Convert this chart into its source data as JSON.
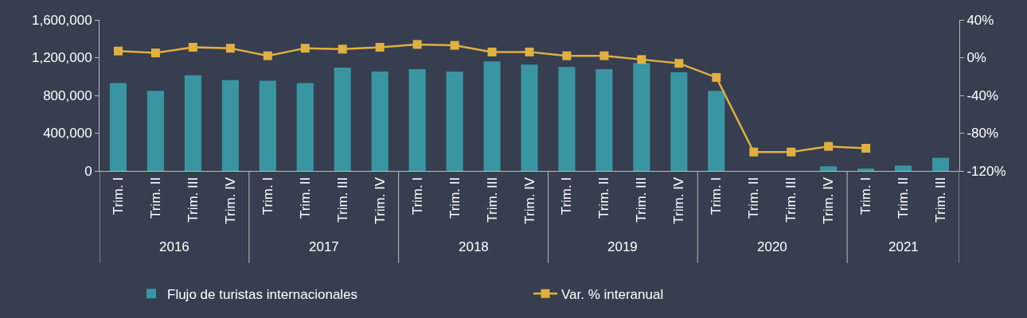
{
  "chart_data": {
    "type": "bar",
    "categories": [
      "Trim. I",
      "Trim. II",
      "Trim. III",
      "Trim. IV",
      "Trim. I",
      "Trim. II",
      "Trim. III",
      "Trim. IV",
      "Trim. I",
      "Trim. II",
      "Trim. III",
      "Trim. IV",
      "Trim. I",
      "Trim. II",
      "Trim. III",
      "Trim. IV",
      "Trim. I",
      "Trim. II",
      "Trim. III",
      "Trim. IV",
      "Trim. I",
      "Trim. II",
      "Trim. III"
    ],
    "annotations": [
      "2016",
      "2017",
      "2018",
      "2019",
      "2020",
      "2021"
    ],
    "series": [
      {
        "name": "Flujo de turistas internacionales",
        "color": "#3a95a3",
        "values": [
          930000,
          849000,
          1012000,
          963000,
          955000,
          930000,
          1094000,
          1053000,
          1078000,
          1053000,
          1159000,
          1127000,
          1102000,
          1078000,
          1143000,
          1045000,
          849000,
          null,
          null,
          49000,
          25000,
          57000,
          139000
        ]
      },
      {
        "name": "Var. % interanual",
        "type": "line",
        "axis": "y2",
        "color": "#e0b040",
        "marker": "square",
        "values": [
          7,
          5,
          11,
          10,
          2,
          10,
          9,
          11,
          14,
          13,
          6,
          6,
          2,
          2,
          -2,
          -6,
          -21,
          -100,
          -100,
          -94,
          -96,
          null,
          null
        ]
      }
    ],
    "ylim": [
      0,
      1600000
    ],
    "yticks": [
      {
        "value": 0,
        "label": "0"
      },
      {
        "value": 400000,
        "label": "400,000"
      },
      {
        "value": 800000,
        "label": "800,000"
      },
      {
        "value": 1200000,
        "label": "1,200,000"
      },
      {
        "value": 1600000,
        "label": "1,600,000"
      }
    ],
    "y2lim": [
      -120,
      40
    ],
    "y2ticks": [
      {
        "value": -120,
        "label": "-120%"
      },
      {
        "value": -80,
        "label": "-80%"
      },
      {
        "value": -40,
        "label": "-40%"
      },
      {
        "value": 0,
        "label": "0%"
      },
      {
        "value": 40,
        "label": "40%"
      }
    ],
    "grid": false,
    "legend": "bottom"
  }
}
